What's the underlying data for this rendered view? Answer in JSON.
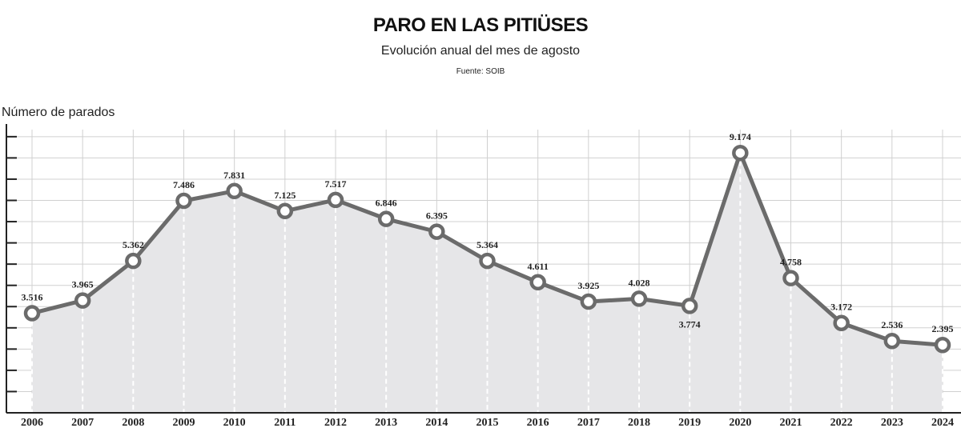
{
  "chart_data": {
    "type": "area",
    "title": "PARO EN LAS PITIÜSES",
    "subtitle": "Evolución anual del mes de agosto",
    "source": "Fuente: SOIB",
    "ylabel": "Número de parados",
    "xlabel": "",
    "categories": [
      "2006",
      "2007",
      "2008",
      "2009",
      "2010",
      "2011",
      "2012",
      "2013",
      "2014",
      "2015",
      "2016",
      "2017",
      "2018",
      "2019",
      "2020",
      "2021",
      "2022",
      "2023",
      "2024"
    ],
    "values": [
      3516,
      3965,
      5362,
      7486,
      7831,
      7125,
      7517,
      6846,
      6395,
      5364,
      4611,
      3925,
      4028,
      3774,
      9174,
      4758,
      3172,
      2536,
      2395
    ],
    "value_labels": [
      "3.516",
      "3.965",
      "5.362",
      "7.486",
      "7.831",
      "7.125",
      "7.517",
      "6.846",
      "6.395",
      "5.364",
      "4.611",
      "3.925",
      "4.028",
      "3.774",
      "9.174",
      "4.758",
      "3.172",
      "2.536",
      "2.395"
    ],
    "ylim": [
      0,
      10000
    ],
    "grid": true,
    "colors": {
      "line": "#6b6b6b",
      "fill": "#e6e6e8",
      "grid": "#d0d0d0"
    }
  }
}
